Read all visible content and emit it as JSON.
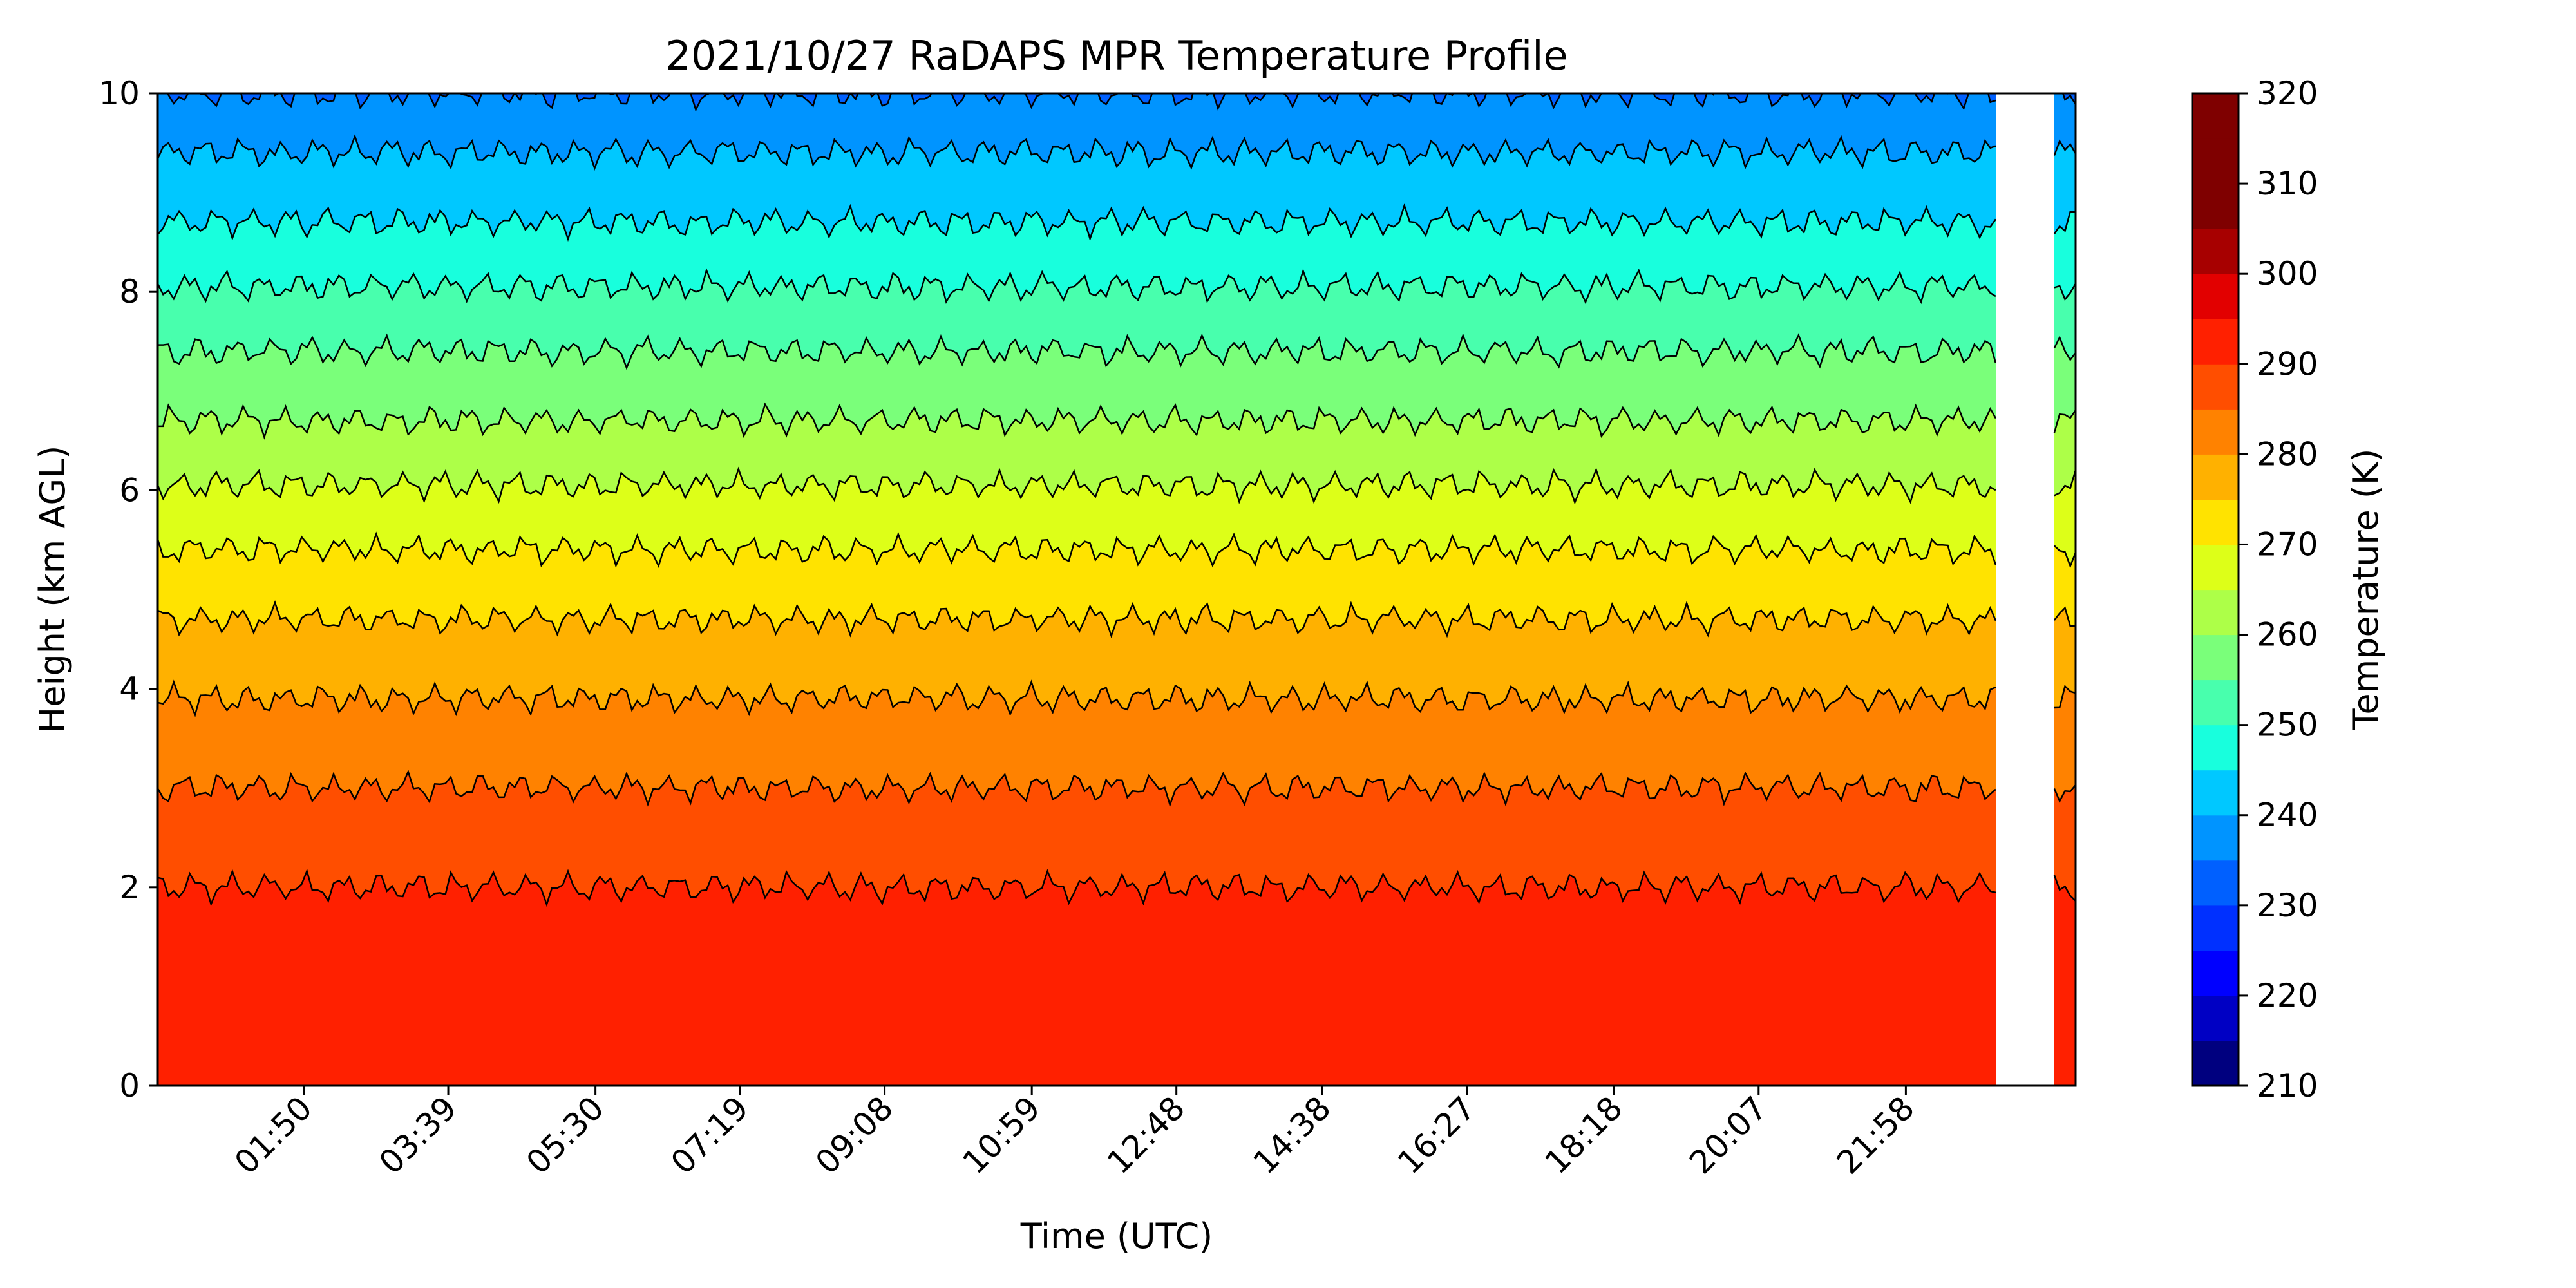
{
  "chart_data": {
    "type": "heatmap",
    "title": "2021/10/27 RaDAPS MPR Temperature Profile",
    "xlabel": "Time (UTC)",
    "ylabel": "Height (km AGL)",
    "x_range_hours": [
      0.0,
      24.1
    ],
    "ylim": [
      0,
      10
    ],
    "x_ticks": [
      {
        "label": "01:50",
        "hours": 1.8333
      },
      {
        "label": "03:39",
        "hours": 3.65
      },
      {
        "label": "05:30",
        "hours": 5.5
      },
      {
        "label": "07:19",
        "hours": 7.3167
      },
      {
        "label": "09:08",
        "hours": 9.1333
      },
      {
        "label": "10:59",
        "hours": 10.9833
      },
      {
        "label": "12:48",
        "hours": 12.8
      },
      {
        "label": "14:38",
        "hours": 14.6333
      },
      {
        "label": "16:27",
        "hours": 16.45
      },
      {
        "label": "18:18",
        "hours": 18.3
      },
      {
        "label": "20:07",
        "hours": 20.1167
      },
      {
        "label": "21:58",
        "hours": 21.9667
      }
    ],
    "y_ticks": [
      0,
      2,
      4,
      6,
      8,
      10
    ],
    "colorbar": {
      "label": "Temperature (K)",
      "min": 210,
      "max": 320,
      "step": 5,
      "ticks": [
        210,
        220,
        230,
        240,
        250,
        260,
        270,
        280,
        290,
        300,
        310,
        320
      ],
      "colors": [
        "#00007f",
        "#0000c4",
        "#0000ff",
        "#0030ff",
        "#0060ff",
        "#0094ff",
        "#00c8ff",
        "#18ffdd",
        "#48ffad",
        "#7aff7a",
        "#adff48",
        "#ddff18",
        "#ffe300",
        "#ffb100",
        "#ff8200",
        "#ff4e00",
        "#ff2000",
        "#e20000",
        "#a70000",
        "#7f0000",
        "#7f0000",
        "#7f0000"
      ]
    },
    "contour_levels_height_km": [
      {
        "level_k": 290,
        "height_km": 2.0
      },
      {
        "level_k": 285,
        "height_km": 3.0
      },
      {
        "level_k": 280,
        "height_km": 3.9
      },
      {
        "level_k": 275,
        "height_km": 4.7
      },
      {
        "level_k": 270,
        "height_km": 5.4
      },
      {
        "level_k": 265,
        "height_km": 6.05
      },
      {
        "level_k": 260,
        "height_km": 6.7
      },
      {
        "level_k": 255,
        "height_km": 7.4
      },
      {
        "level_k": 250,
        "height_km": 8.05
      },
      {
        "level_k": 245,
        "height_km": 8.7
      },
      {
        "level_k": 240,
        "height_km": 9.4
      },
      {
        "level_k": 235,
        "height_km": 10.0
      }
    ],
    "data_gap_hours": [
      23.1,
      23.8
    ]
  }
}
